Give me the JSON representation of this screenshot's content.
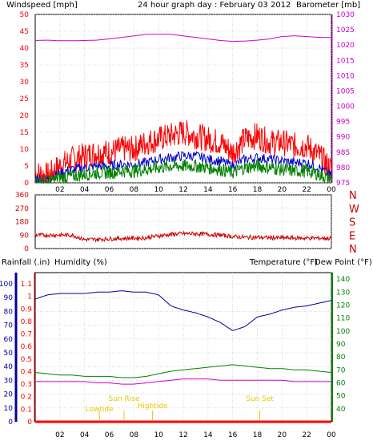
{
  "colors": {
    "wind": "#ff0000",
    "wind_avg": "#0000cc",
    "wind_low": "#008000",
    "baro": "#cc00cc",
    "dir": "#cc0000",
    "rain": "#ff0000",
    "humidity": "#000099",
    "temp": "#008000",
    "dew": "#cc00cc",
    "sun": "#e6c800",
    "axis": "#000000",
    "grid": "#c0c0c0"
  },
  "header": {
    "title": "24 hour graph day : February 03 2012",
    "windspeed_label": "Windspeed [mph]",
    "barometer_label": "Barometer [mb]"
  },
  "time_ticks": [
    "02",
    "04",
    "06",
    "08",
    "10",
    "12",
    "14",
    "16",
    "18",
    "20",
    "22",
    "00"
  ],
  "wind_panel": {
    "left_ticks": [
      "0",
      "5",
      "10",
      "15",
      "20",
      "25",
      "30",
      "35",
      "40",
      "45",
      "50"
    ],
    "right_ticks": [
      "975",
      "980",
      "985",
      "990",
      "995",
      "1000",
      "1005",
      "1010",
      "1015",
      "1020",
      "1025",
      "1030"
    ]
  },
  "dir_panel": {
    "left_ticks": [
      "0",
      "90",
      "180",
      "270",
      "360"
    ],
    "right_labels": [
      "N",
      "W",
      "S",
      "E",
      "N"
    ]
  },
  "bottom_panel": {
    "rainfall_label": "Rainfall (.in)",
    "humidity_label": "Humidity (%)",
    "temperature_label": "Temperature (°F)",
    "dewpoint_label": "Dew Point (°F)",
    "rain_ticks": [
      "0",
      "0.1",
      "0.2",
      "0.3",
      "0.4",
      "0.5",
      "0.6",
      "0.7",
      "0.8",
      "0.9",
      "1",
      "1.1"
    ],
    "humidity_ticks": [
      "0",
      "10",
      "20",
      "30",
      "40",
      "50",
      "60",
      "70",
      "80",
      "90",
      "100"
    ],
    "temp_ticks": [
      "40",
      "50",
      "60",
      "70",
      "80",
      "90",
      "100",
      "110",
      "120",
      "130",
      "140"
    ],
    "events": [
      {
        "label": "Lowtide",
        "hour": 5.2
      },
      {
        "label": "Sun Rise",
        "hour": 7.2
      },
      {
        "label": "Hightide",
        "hour": 9.5
      },
      {
        "label": "Sun Set",
        "hour": 18.2
      }
    ]
  },
  "chart_data": [
    {
      "type": "line",
      "panel": "wind-barometer",
      "xlabel": "",
      "ylabel": "Windspeed [mph]",
      "ylabel_right": "Barometer [mb]",
      "x": [
        0,
        1,
        2,
        3,
        4,
        5,
        6,
        7,
        8,
        9,
        10,
        11,
        12,
        13,
        14,
        15,
        16,
        17,
        18,
        19,
        20,
        21,
        22,
        23,
        24
      ],
      "ylim": [
        0,
        50
      ],
      "ylim_right": [
        975,
        1030
      ],
      "series": [
        {
          "name": "Windspeed [mph]",
          "axis": "left",
          "values": [
            3,
            2,
            5,
            7,
            8,
            9,
            9,
            10,
            10,
            12,
            13,
            14,
            15,
            14,
            13,
            12,
            9,
            13,
            14,
            12,
            12,
            11,
            11,
            8,
            4
          ]
        },
        {
          "axis": "left",
          "values": [
            1.5,
            1,
            3,
            4,
            4.5,
            5,
            5,
            5.5,
            5.5,
            6,
            7,
            7.5,
            8,
            8,
            7,
            6.5,
            5,
            7,
            7.5,
            7,
            6.5,
            6,
            6,
            4.5,
            2
          ]
        },
        {
          "axis": "left",
          "values": [
            0.5,
            0.3,
            1.5,
            2,
            2.5,
            3,
            3,
            3.5,
            3.5,
            4,
            4.5,
            5,
            5,
            5,
            4.5,
            4,
            3,
            4.5,
            5,
            4.5,
            4,
            3.5,
            3.5,
            2.5,
            1
          ]
        },
        {
          "name": "Barometer [mb]",
          "axis": "right",
          "values": [
            1021.5,
            1021.6,
            1021.4,
            1021.4,
            1021.5,
            1021.6,
            1022,
            1022.5,
            1023,
            1023.5,
            1023.5,
            1023.5,
            1023,
            1022.5,
            1022,
            1021.5,
            1021.2,
            1021.3,
            1021.6,
            1022,
            1022.8,
            1023,
            1022.8,
            1022.5,
            1022.5
          ]
        }
      ]
    },
    {
      "type": "line",
      "panel": "wind-direction",
      "xlabel": "",
      "ylabel": "",
      "x": [
        0,
        1,
        2,
        3,
        4,
        5,
        6,
        7,
        8,
        9,
        10,
        11,
        12,
        13,
        14,
        15,
        16,
        17,
        18,
        19,
        20,
        21,
        22,
        23,
        24
      ],
      "ylim": [
        0,
        360
      ],
      "series": [
        {
          "values": [
            90,
            90,
            90,
            90,
            60,
            62,
            65,
            68,
            70,
            72,
            85,
            95,
            100,
            100,
            95,
            90,
            80,
            75,
            75,
            72,
            72,
            70,
            70,
            70,
            68
          ]
        }
      ]
    },
    {
      "type": "line",
      "panel": "rain-humidity-temperature",
      "xlabel": "",
      "ylabel": "Humidity (%)",
      "ylabel_right": "Temperature (°F)",
      "x": [
        0,
        1,
        2,
        3,
        4,
        5,
        6,
        7,
        8,
        9,
        10,
        11,
        12,
        13,
        14,
        15,
        16,
        17,
        18,
        19,
        20,
        21,
        22,
        23,
        24
      ],
      "ylim": [
        0,
        100
      ],
      "ylim_right": [
        30,
        145
      ],
      "series": [
        {
          "name": "Rainfall (.in)",
          "axis": "rain",
          "values": [
            0,
            0,
            0,
            0,
            0,
            0,
            0,
            0,
            0,
            0,
            0,
            0,
            0,
            0,
            0,
            0,
            0,
            0,
            0,
            0,
            0,
            0,
            0,
            0,
            0
          ]
        },
        {
          "name": "Humidity (%)",
          "axis": "left",
          "values": [
            89,
            92,
            93,
            93,
            93,
            94,
            94,
            95,
            94,
            94,
            92,
            84,
            81,
            79,
            76,
            72,
            66,
            69,
            76,
            78,
            81,
            83,
            84,
            86,
            88
          ]
        },
        {
          "name": "Temperature (°F)",
          "axis": "right",
          "values": [
            68,
            67,
            66,
            66,
            65,
            65,
            65,
            64,
            64,
            65,
            67,
            69,
            70,
            71,
            72,
            73,
            74,
            73,
            72,
            71,
            71,
            70,
            70,
            69,
            68
          ]
        },
        {
          "name": "Dew Point (°F)",
          "axis": "right",
          "values": [
            61,
            61,
            61,
            61,
            61,
            60,
            60,
            59,
            59,
            60,
            61,
            62,
            63,
            63,
            63,
            62,
            62,
            62,
            62,
            62,
            62,
            61,
            61,
            61,
            61
          ]
        }
      ]
    }
  ]
}
